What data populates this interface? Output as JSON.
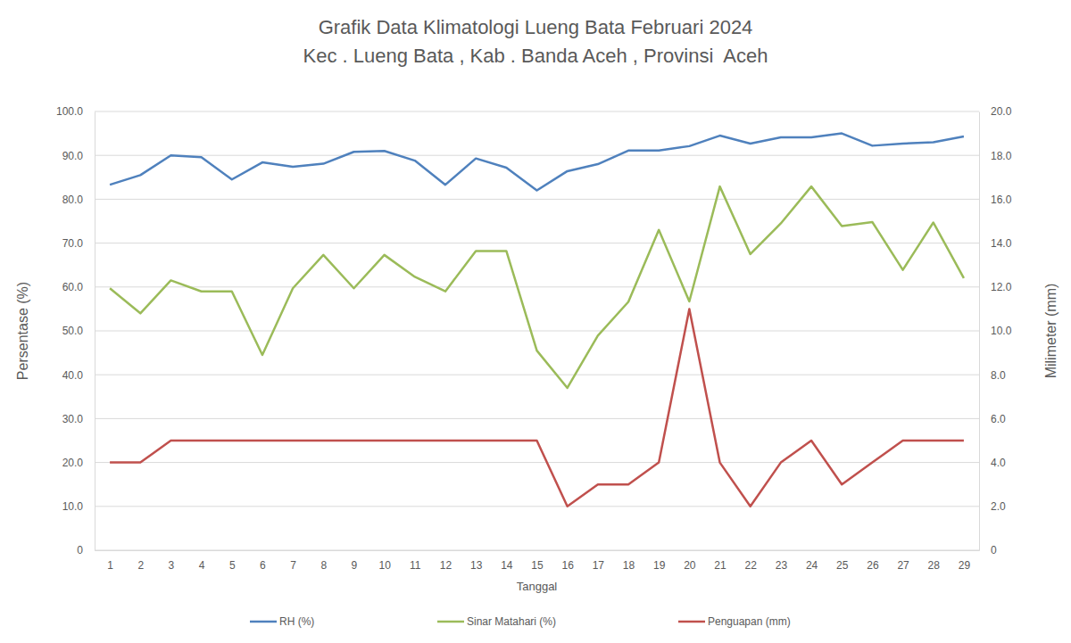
{
  "chart_data": {
    "type": "line",
    "title": "Grafik Data Klimatologi Lueng Bata Februari 2024",
    "subtitle": "Kec . Lueng Bata , Kab . Banda Aceh , Provinsi  Aceh",
    "xlabel": "Tanggal",
    "ylabel": "Persentase (%)",
    "y2label": "Milimeter (mm)",
    "categories": [
      "1",
      "2",
      "3",
      "4",
      "5",
      "6",
      "7",
      "8",
      "9",
      "10",
      "11",
      "12",
      "13",
      "14",
      "15",
      "16",
      "17",
      "18",
      "19",
      "20",
      "21",
      "22",
      "23",
      "24",
      "25",
      "26",
      "27",
      "28",
      "29"
    ],
    "series": [
      {
        "name": "RH (%)",
        "color": "#4f81bd",
        "values": [
          83.3,
          85.5,
          90.0,
          89.6,
          84.5,
          88.4,
          87.4,
          88.1,
          90.8,
          91.0,
          88.8,
          83.3,
          89.3,
          87.2,
          82.0,
          86.4,
          88.0,
          91.1,
          91.1,
          92.1,
          94.5,
          92.7,
          94.1,
          94.1,
          95.0,
          92.2,
          92.7,
          93.0,
          94.3
        ]
      },
      {
        "name": "Sinar Matahari (%)",
        "color": "#9bbb59",
        "values": [
          59.7,
          54.0,
          61.5,
          59.0,
          59.0,
          44.5,
          59.7,
          67.3,
          59.7,
          67.3,
          62.3,
          59.0,
          68.2,
          68.2,
          45.5,
          37.0,
          48.9,
          56.6,
          73.0,
          56.7,
          82.9,
          67.5,
          74.5,
          82.9,
          73.9,
          74.8,
          63.9,
          74.7,
          62.0
        ]
      },
      {
        "name": "Penguapan (mm)",
        "color": "#c0504d",
        "axis": "y2",
        "values": [
          4,
          4,
          5,
          5,
          5,
          5,
          5,
          5,
          5,
          5,
          5,
          5,
          5,
          5,
          5,
          2,
          3,
          3,
          4,
          11,
          4,
          2,
          4,
          5,
          3,
          4,
          5,
          5,
          5
        ]
      }
    ],
    "ylim": [
      0,
      100
    ],
    "yticks": [
      0,
      {
        "value": 10,
        "label": "10.0"
      },
      {
        "value": 20,
        "label": "20.0"
      },
      {
        "value": 30,
        "label": "30.0"
      },
      {
        "value": 40,
        "label": "40.0"
      },
      {
        "value": 50,
        "label": "50.0"
      },
      {
        "value": 60,
        "label": "60.0"
      },
      {
        "value": 70,
        "label": "70.0"
      },
      {
        "value": 80,
        "label": "80.0"
      },
      {
        "value": 90,
        "label": "90.0"
      },
      {
        "value": 100,
        "label": "100.0"
      }
    ],
    "y2lim": [
      0,
      20
    ],
    "y2ticks": [
      0,
      {
        "value": 2,
        "label": "2.0"
      },
      {
        "value": 4,
        "label": "4.0"
      },
      {
        "value": 6,
        "label": "6.0"
      },
      {
        "value": 8,
        "label": "8.0"
      },
      {
        "value": 10,
        "label": "10.0"
      },
      {
        "value": 12,
        "label": "12.0"
      },
      {
        "value": 14,
        "label": "14.0"
      },
      {
        "value": 16,
        "label": "16.0"
      },
      {
        "value": 18,
        "label": "18.0"
      },
      {
        "value": 20,
        "label": "20.0"
      }
    ],
    "grid": true,
    "legend": "bottom"
  }
}
